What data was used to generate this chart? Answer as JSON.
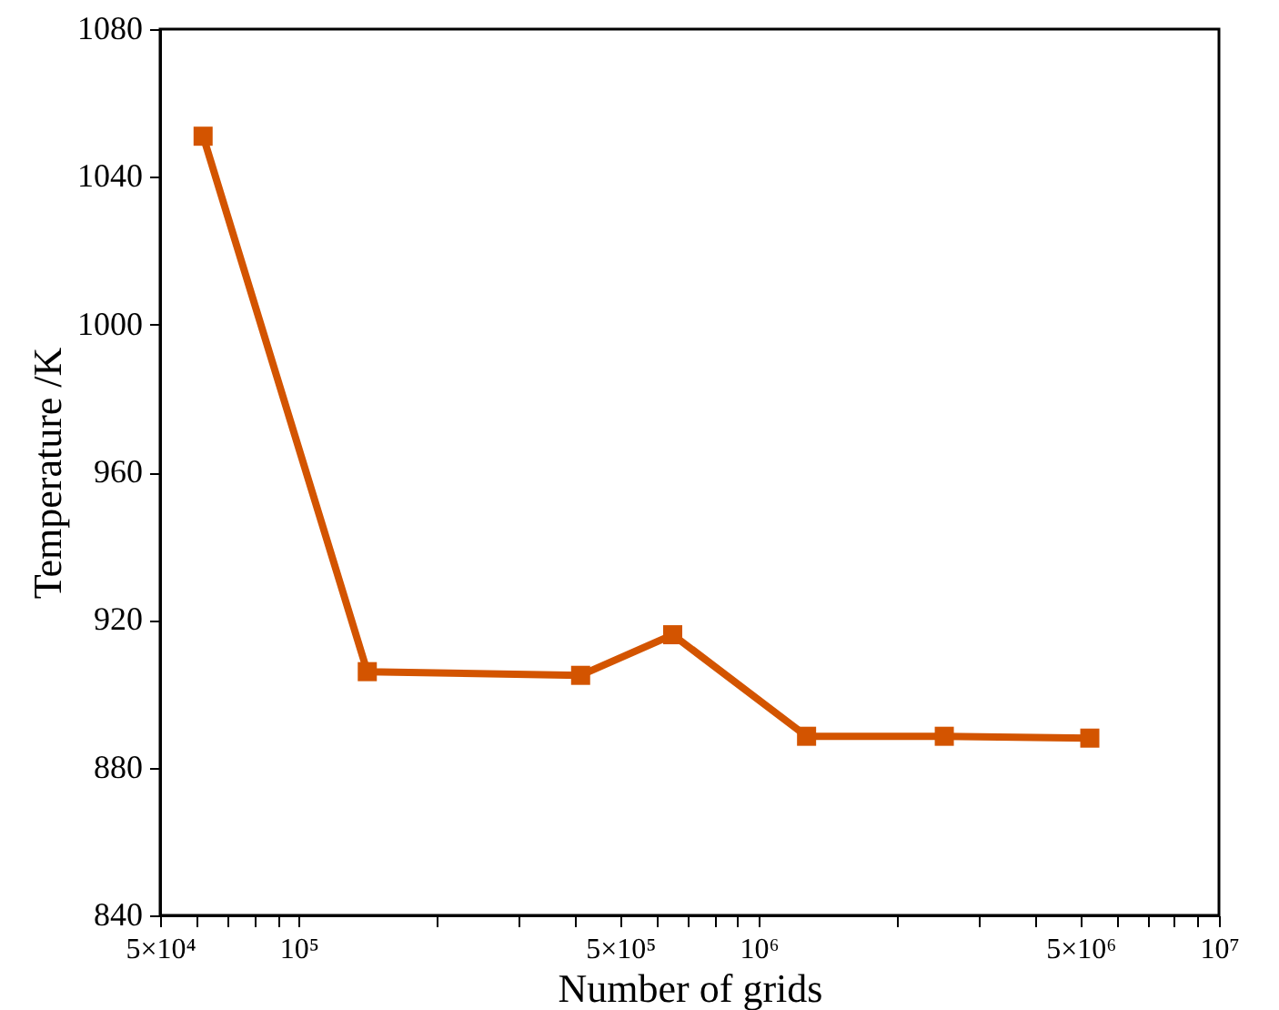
{
  "chart_data": {
    "type": "line",
    "xlabel": "Number of grids",
    "ylabel": "Temperature /K",
    "log": "x",
    "x": [
      62000,
      141000,
      410000,
      650000,
      1270000,
      2530000,
      5240000
    ],
    "series": [
      {
        "color": "#d35400",
        "values": [
          1051,
          906,
          905,
          916,
          888.5,
          888.5,
          888
        ]
      }
    ],
    "marker": "square",
    "line_style": "solid",
    "grid": false,
    "xlim": [
      50000,
      10000000
    ],
    "xticks": [
      {
        "value": 50000,
        "label": "5×10⁴"
      },
      {
        "value": 60000,
        "label": null
      },
      {
        "value": 70000,
        "label": null
      },
      {
        "value": 80000,
        "label": null
      },
      {
        "value": 90000,
        "label": null
      },
      {
        "value": 100000,
        "label": "10⁵"
      },
      {
        "value": 200000,
        "label": null
      },
      {
        "value": 300000,
        "label": null
      },
      {
        "value": 400000,
        "label": null
      },
      {
        "value": 500000,
        "label": "5×10⁵"
      },
      {
        "value": 600000,
        "label": null
      },
      {
        "value": 700000,
        "label": null
      },
      {
        "value": 800000,
        "label": null
      },
      {
        "value": 900000,
        "label": null
      },
      {
        "value": 1000000,
        "label": "10⁶"
      },
      {
        "value": 2000000,
        "label": null
      },
      {
        "value": 3000000,
        "label": null
      },
      {
        "value": 4000000,
        "label": null
      },
      {
        "value": 5000000,
        "label": "5×10⁶"
      },
      {
        "value": 6000000,
        "label": null
      },
      {
        "value": 7000000,
        "label": null
      },
      {
        "value": 8000000,
        "label": null
      },
      {
        "value": 9000000,
        "label": null
      },
      {
        "value": 10000000,
        "label": "10⁷"
      }
    ],
    "ylim": [
      840,
      1080
    ],
    "yticks": [
      840,
      880,
      920,
      960,
      1000,
      1040,
      1080
    ]
  }
}
